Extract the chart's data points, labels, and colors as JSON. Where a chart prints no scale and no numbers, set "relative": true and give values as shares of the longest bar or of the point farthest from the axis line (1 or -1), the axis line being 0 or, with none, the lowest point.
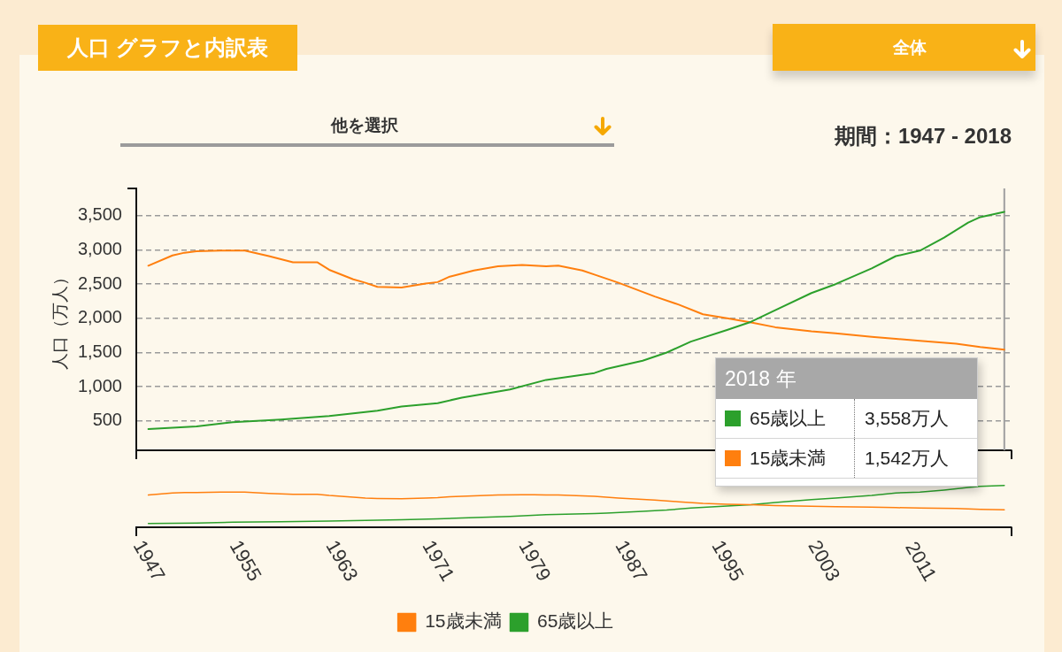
{
  "chart_data": [
    {
      "type": "line",
      "title": "人口 グラフと内訳表",
      "subtitle": "期間：1947 - 2018",
      "ylabel": "人口（万人）",
      "annotations": [
        "全体",
        "他を選択",
        "2018 年",
        "3,558万人",
        "1,542万人"
      ],
      "xlim": [
        1946,
        2018.6
      ],
      "ylim": [
        70,
        3900
      ],
      "yticks": [
        500,
        {
          "value": 1000,
          "label": "1,000"
        },
        {
          "value": 1500,
          "label": "1,500"
        },
        {
          "value": 2000,
          "label": "2,000"
        },
        {
          "value": 2500,
          "label": "2,500"
        },
        {
          "value": 3000,
          "label": "3,000"
        },
        {
          "value": 3500,
          "label": "3,500"
        }
      ],
      "grid": "y",
      "tick_labels": "y",
      "legend": "bottom right",
      "ref_lines": [
        {
          "axis": "x",
          "value": 2018,
          "color": "#a0a0a0"
        }
      ],
      "series": [
        {
          "name": "65歳以上",
          "color": "#2ca02c",
          "x": [
            1947,
            1951,
            1954,
            1958,
            1962,
            1966,
            1968,
            1971,
            1973,
            1977,
            1980,
            1984,
            1985,
            1988,
            1990,
            1992,
            1995,
            1997,
            1999,
            2002,
            2004,
            2007,
            2009,
            2011,
            2013,
            2015,
            2016,
            2018
          ],
          "values": [
            380,
            420,
            480,
            520,
            570,
            650,
            710,
            760,
            840,
            960,
            1100,
            1200,
            1260,
            1380,
            1500,
            1660,
            1830,
            1950,
            2120,
            2370,
            2500,
            2730,
            2910,
            2990,
            3180,
            3400,
            3480,
            3558
          ]
        },
        {
          "name": "15歳未満",
          "color": "#ff7f0e",
          "x": [
            1947,
            1949,
            1950,
            1951,
            1953,
            1954,
            1955,
            1957,
            1959,
            1961,
            1962,
            1964,
            1965,
            1966,
            1968,
            1970,
            1971,
            1972,
            1974,
            1976,
            1978,
            1979,
            1980,
            1981,
            1983,
            1984,
            1986,
            1989,
            1991,
            1993,
            1995,
            1997,
            1999,
            2002,
            2004,
            2007,
            2009,
            2011,
            2014,
            2016,
            2018
          ],
          "values": [
            2770,
            2920,
            2960,
            2980,
            2990,
            2990,
            2990,
            2910,
            2820,
            2820,
            2710,
            2570,
            2520,
            2460,
            2450,
            2510,
            2530,
            2610,
            2700,
            2760,
            2780,
            2770,
            2760,
            2770,
            2700,
            2640,
            2520,
            2320,
            2200,
            2060,
            2000,
            1940,
            1870,
            1810,
            1780,
            1730,
            1700,
            1670,
            1630,
            1580,
            1542
          ]
        }
      ]
    },
    {
      "type": "line",
      "relative": true,
      "xlim": [
        1946,
        2018.6
      ],
      "xticks": [
        1947,
        1955,
        1963,
        1971,
        1979,
        1987,
        1995,
        2003,
        2011
      ],
      "tick_labels": "x",
      "legend": "bottom",
      "series": [
        {
          "name": "15歳未満",
          "color": "#ff7f0e",
          "x": [
            1947,
            1949,
            1950,
            1951,
            1953,
            1954,
            1955,
            1957,
            1959,
            1961,
            1962,
            1964,
            1965,
            1966,
            1968,
            1970,
            1971,
            1972,
            1974,
            1976,
            1978,
            1979,
            1980,
            1981,
            1983,
            1984,
            1986,
            1989,
            1991,
            1993,
            1995,
            1997,
            1999,
            2002,
            2004,
            2007,
            2009,
            2011,
            2014,
            2016,
            2018
          ],
          "values": [
            0.77,
            0.82,
            0.83,
            0.83,
            0.84,
            0.84,
            0.84,
            0.81,
            0.79,
            0.79,
            0.76,
            0.72,
            0.7,
            0.69,
            0.68,
            0.7,
            0.71,
            0.73,
            0.75,
            0.77,
            0.78,
            0.78,
            0.77,
            0.77,
            0.75,
            0.74,
            0.7,
            0.65,
            0.61,
            0.57,
            0.55,
            0.54,
            0.52,
            0.5,
            0.49,
            0.48,
            0.47,
            0.46,
            0.45,
            0.43,
            0.42
          ]
        },
        {
          "name": "65歳以上",
          "color": "#2ca02c",
          "x": [
            1947,
            1951,
            1954,
            1958,
            1962,
            1966,
            1968,
            1971,
            1973,
            1977,
            1980,
            1984,
            1985,
            1988,
            1990,
            1992,
            1995,
            1997,
            1999,
            2002,
            2004,
            2007,
            2009,
            2011,
            2013,
            2015,
            2016,
            2018
          ],
          "values": [
            0.09,
            0.1,
            0.12,
            0.13,
            0.15,
            0.17,
            0.18,
            0.2,
            0.22,
            0.26,
            0.3,
            0.33,
            0.34,
            0.38,
            0.41,
            0.46,
            0.51,
            0.54,
            0.59,
            0.66,
            0.7,
            0.76,
            0.82,
            0.84,
            0.89,
            0.95,
            0.98,
            1
          ]
        }
      ]
    }
  ]
}
